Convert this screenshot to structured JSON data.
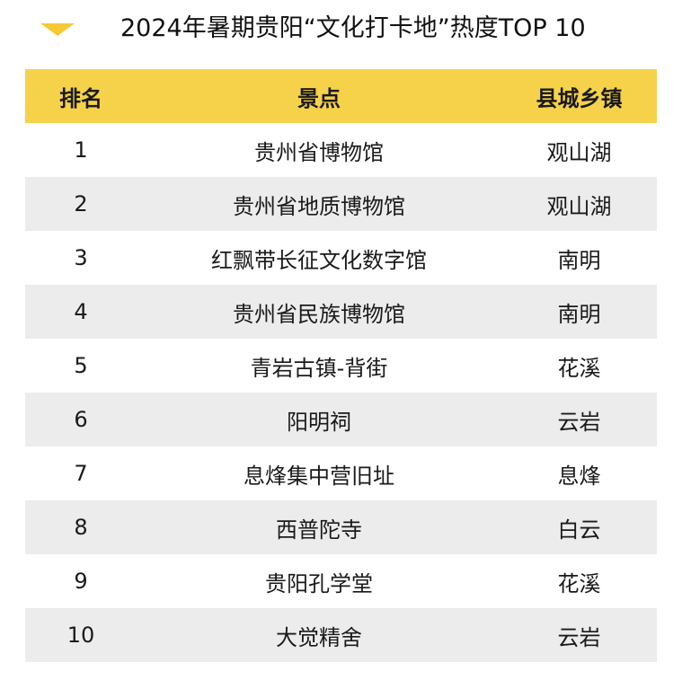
{
  "title": "2024年暑期贵阳“文化打卡地”热度TOP 10",
  "colors": {
    "header_bg": "#f6d24a",
    "marker": "#f6c935",
    "stripe": "#ececec"
  },
  "table": {
    "headers": {
      "rank": "排名",
      "spot": "景点",
      "area": "县城乡镇"
    },
    "rows": [
      {
        "rank": "1",
        "spot": "贵州省博物馆",
        "area": "观山湖"
      },
      {
        "rank": "2",
        "spot": "贵州省地质博物馆",
        "area": "观山湖"
      },
      {
        "rank": "3",
        "spot": "红飘带长征文化数字馆",
        "area": "南明"
      },
      {
        "rank": "4",
        "spot": "贵州省民族博物馆",
        "area": "南明"
      },
      {
        "rank": "5",
        "spot": "青岩古镇-背街",
        "area": "花溪"
      },
      {
        "rank": "6",
        "spot": "阳明祠",
        "area": "云岩"
      },
      {
        "rank": "7",
        "spot": "息烽集中营旧址",
        "area": "息烽"
      },
      {
        "rank": "8",
        "spot": "西普陀寺",
        "area": "白云"
      },
      {
        "rank": "9",
        "spot": "贵阳孔学堂",
        "area": "花溪"
      },
      {
        "rank": "10",
        "spot": "大觉精舍",
        "area": "云岩"
      }
    ]
  }
}
